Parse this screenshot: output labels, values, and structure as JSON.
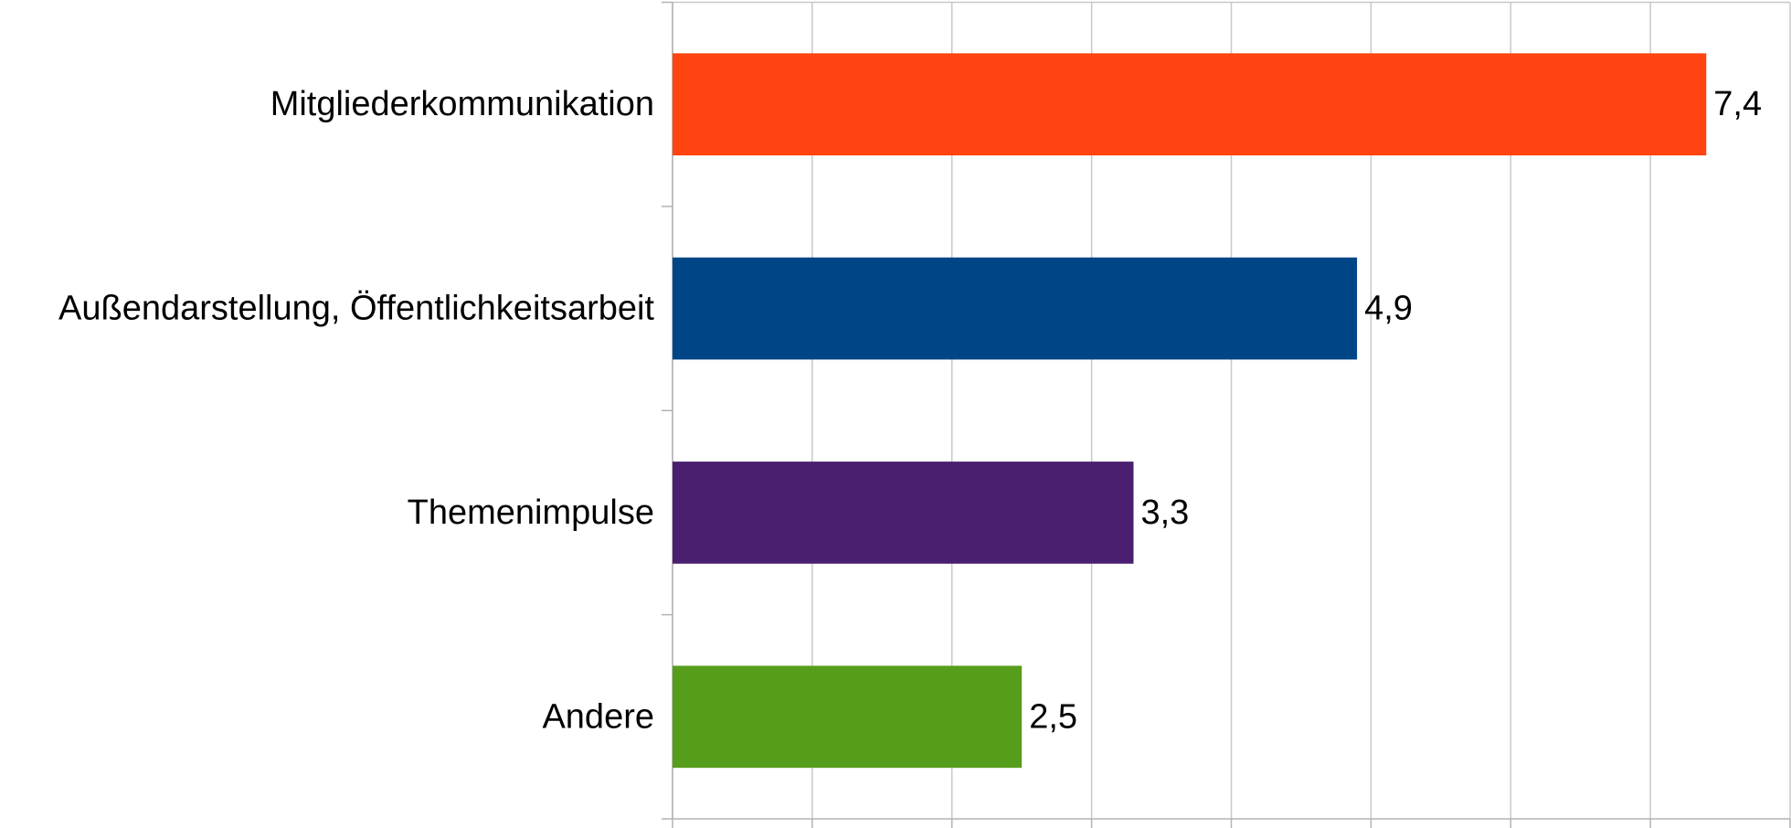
{
  "chart_data": {
    "type": "hbar",
    "categories": [
      "Mitgliederkommunikation",
      "Außendarstellung, Öffentlichkeitsarbeit",
      "Themenimpulse",
      "Andere"
    ],
    "values": [
      7.4,
      4.9,
      3.3,
      2.5
    ],
    "value_labels": [
      "7,4",
      "4,9",
      "3,3",
      "2,5"
    ],
    "colors": [
      "#ff4411",
      "#004586",
      "#4b1f6f",
      "#579d1c"
    ],
    "xlim": [
      0,
      8
    ],
    "xticks": [
      0,
      1,
      2,
      3,
      4,
      5,
      6,
      7,
      8
    ],
    "grid": true
  }
}
